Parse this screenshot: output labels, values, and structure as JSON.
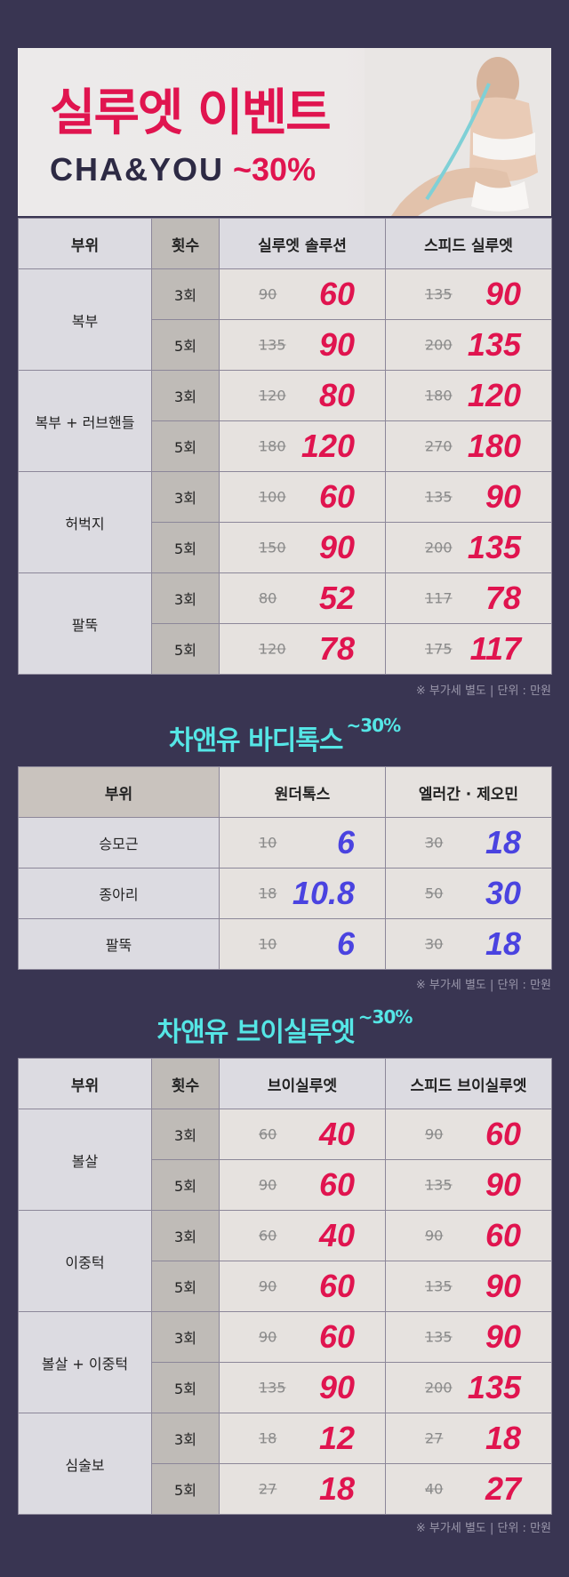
{
  "banner": {
    "title": "실루엣 이벤트",
    "subtitle": "CHA&YOU",
    "discount": "~30%"
  },
  "table1": {
    "headers": [
      "부위",
      "횟수",
      "실루엣 솔루션",
      "스피드 실루엣"
    ],
    "rows": [
      {
        "part": "복부",
        "count": "3회",
        "a_orig": "90",
        "a_sale": "60",
        "b_orig": "135",
        "b_sale": "90"
      },
      {
        "part": "",
        "count": "5회",
        "a_orig": "135",
        "a_sale": "90",
        "b_orig": "200",
        "b_sale": "135"
      },
      {
        "part": "복부 + 러브핸들",
        "count": "3회",
        "a_orig": "120",
        "a_sale": "80",
        "b_orig": "180",
        "b_sale": "120"
      },
      {
        "part": "",
        "count": "5회",
        "a_orig": "180",
        "a_sale": "120",
        "b_orig": "270",
        "b_sale": "180"
      },
      {
        "part": "허벅지",
        "count": "3회",
        "a_orig": "100",
        "a_sale": "60",
        "b_orig": "135",
        "b_sale": "90"
      },
      {
        "part": "",
        "count": "5회",
        "a_orig": "150",
        "a_sale": "90",
        "b_orig": "200",
        "b_sale": "135"
      },
      {
        "part": "팔뚝",
        "count": "3회",
        "a_orig": "80",
        "a_sale": "52",
        "b_orig": "117",
        "b_sale": "78"
      },
      {
        "part": "",
        "count": "5회",
        "a_orig": "120",
        "a_sale": "78",
        "b_orig": "175",
        "b_sale": "117"
      }
    ],
    "note": "※ 부가세 별도 | 단위 : 만원"
  },
  "section2": {
    "title": "차앤유 바디톡스",
    "discount": "~30%",
    "headers": [
      "부위",
      "원더톡스",
      "엘러간 · 제오민"
    ],
    "rows": [
      {
        "part": "승모근",
        "a_orig": "10",
        "a_sale": "6",
        "b_orig": "30",
        "b_sale": "18"
      },
      {
        "part": "종아리",
        "a_orig": "18",
        "a_sale": "10.8",
        "b_orig": "50",
        "b_sale": "30"
      },
      {
        "part": "팔뚝",
        "a_orig": "10",
        "a_sale": "6",
        "b_orig": "30",
        "b_sale": "18"
      }
    ],
    "note": "※ 부가세 별도 | 단위 : 만원"
  },
  "section3": {
    "title": "차앤유 브이실루엣",
    "discount": "~30%",
    "headers": [
      "부위",
      "횟수",
      "브이실루엣",
      "스피드 브이실루엣"
    ],
    "rows": [
      {
        "part": "볼살",
        "count": "3회",
        "a_orig": "60",
        "a_sale": "40",
        "b_orig": "90",
        "b_sale": "60"
      },
      {
        "part": "",
        "count": "5회",
        "a_orig": "90",
        "a_sale": "60",
        "b_orig": "135",
        "b_sale": "90"
      },
      {
        "part": "이중턱",
        "count": "3회",
        "a_orig": "60",
        "a_sale": "40",
        "b_orig": "90",
        "b_sale": "60"
      },
      {
        "part": "",
        "count": "5회",
        "a_orig": "90",
        "a_sale": "60",
        "b_orig": "135",
        "b_sale": "90"
      },
      {
        "part": "볼살 + 이중턱",
        "count": "3회",
        "a_orig": "90",
        "a_sale": "60",
        "b_orig": "135",
        "b_sale": "90"
      },
      {
        "part": "",
        "count": "5회",
        "a_orig": "135",
        "a_sale": "90",
        "b_orig": "200",
        "b_sale": "135"
      },
      {
        "part": "심술보",
        "count": "3회",
        "a_orig": "18",
        "a_sale": "12",
        "b_orig": "27",
        "b_sale": "18"
      },
      {
        "part": "",
        "count": "5회",
        "a_orig": "27",
        "a_sale": "18",
        "b_orig": "40",
        "b_sale": "27"
      }
    ],
    "note": "※ 부가세 별도 | 단위 : 만원"
  },
  "colors": {
    "background": "#393552",
    "sale_red": "#e0144f",
    "sale_blue": "#4a43e0",
    "section_title": "#55e6e6"
  }
}
